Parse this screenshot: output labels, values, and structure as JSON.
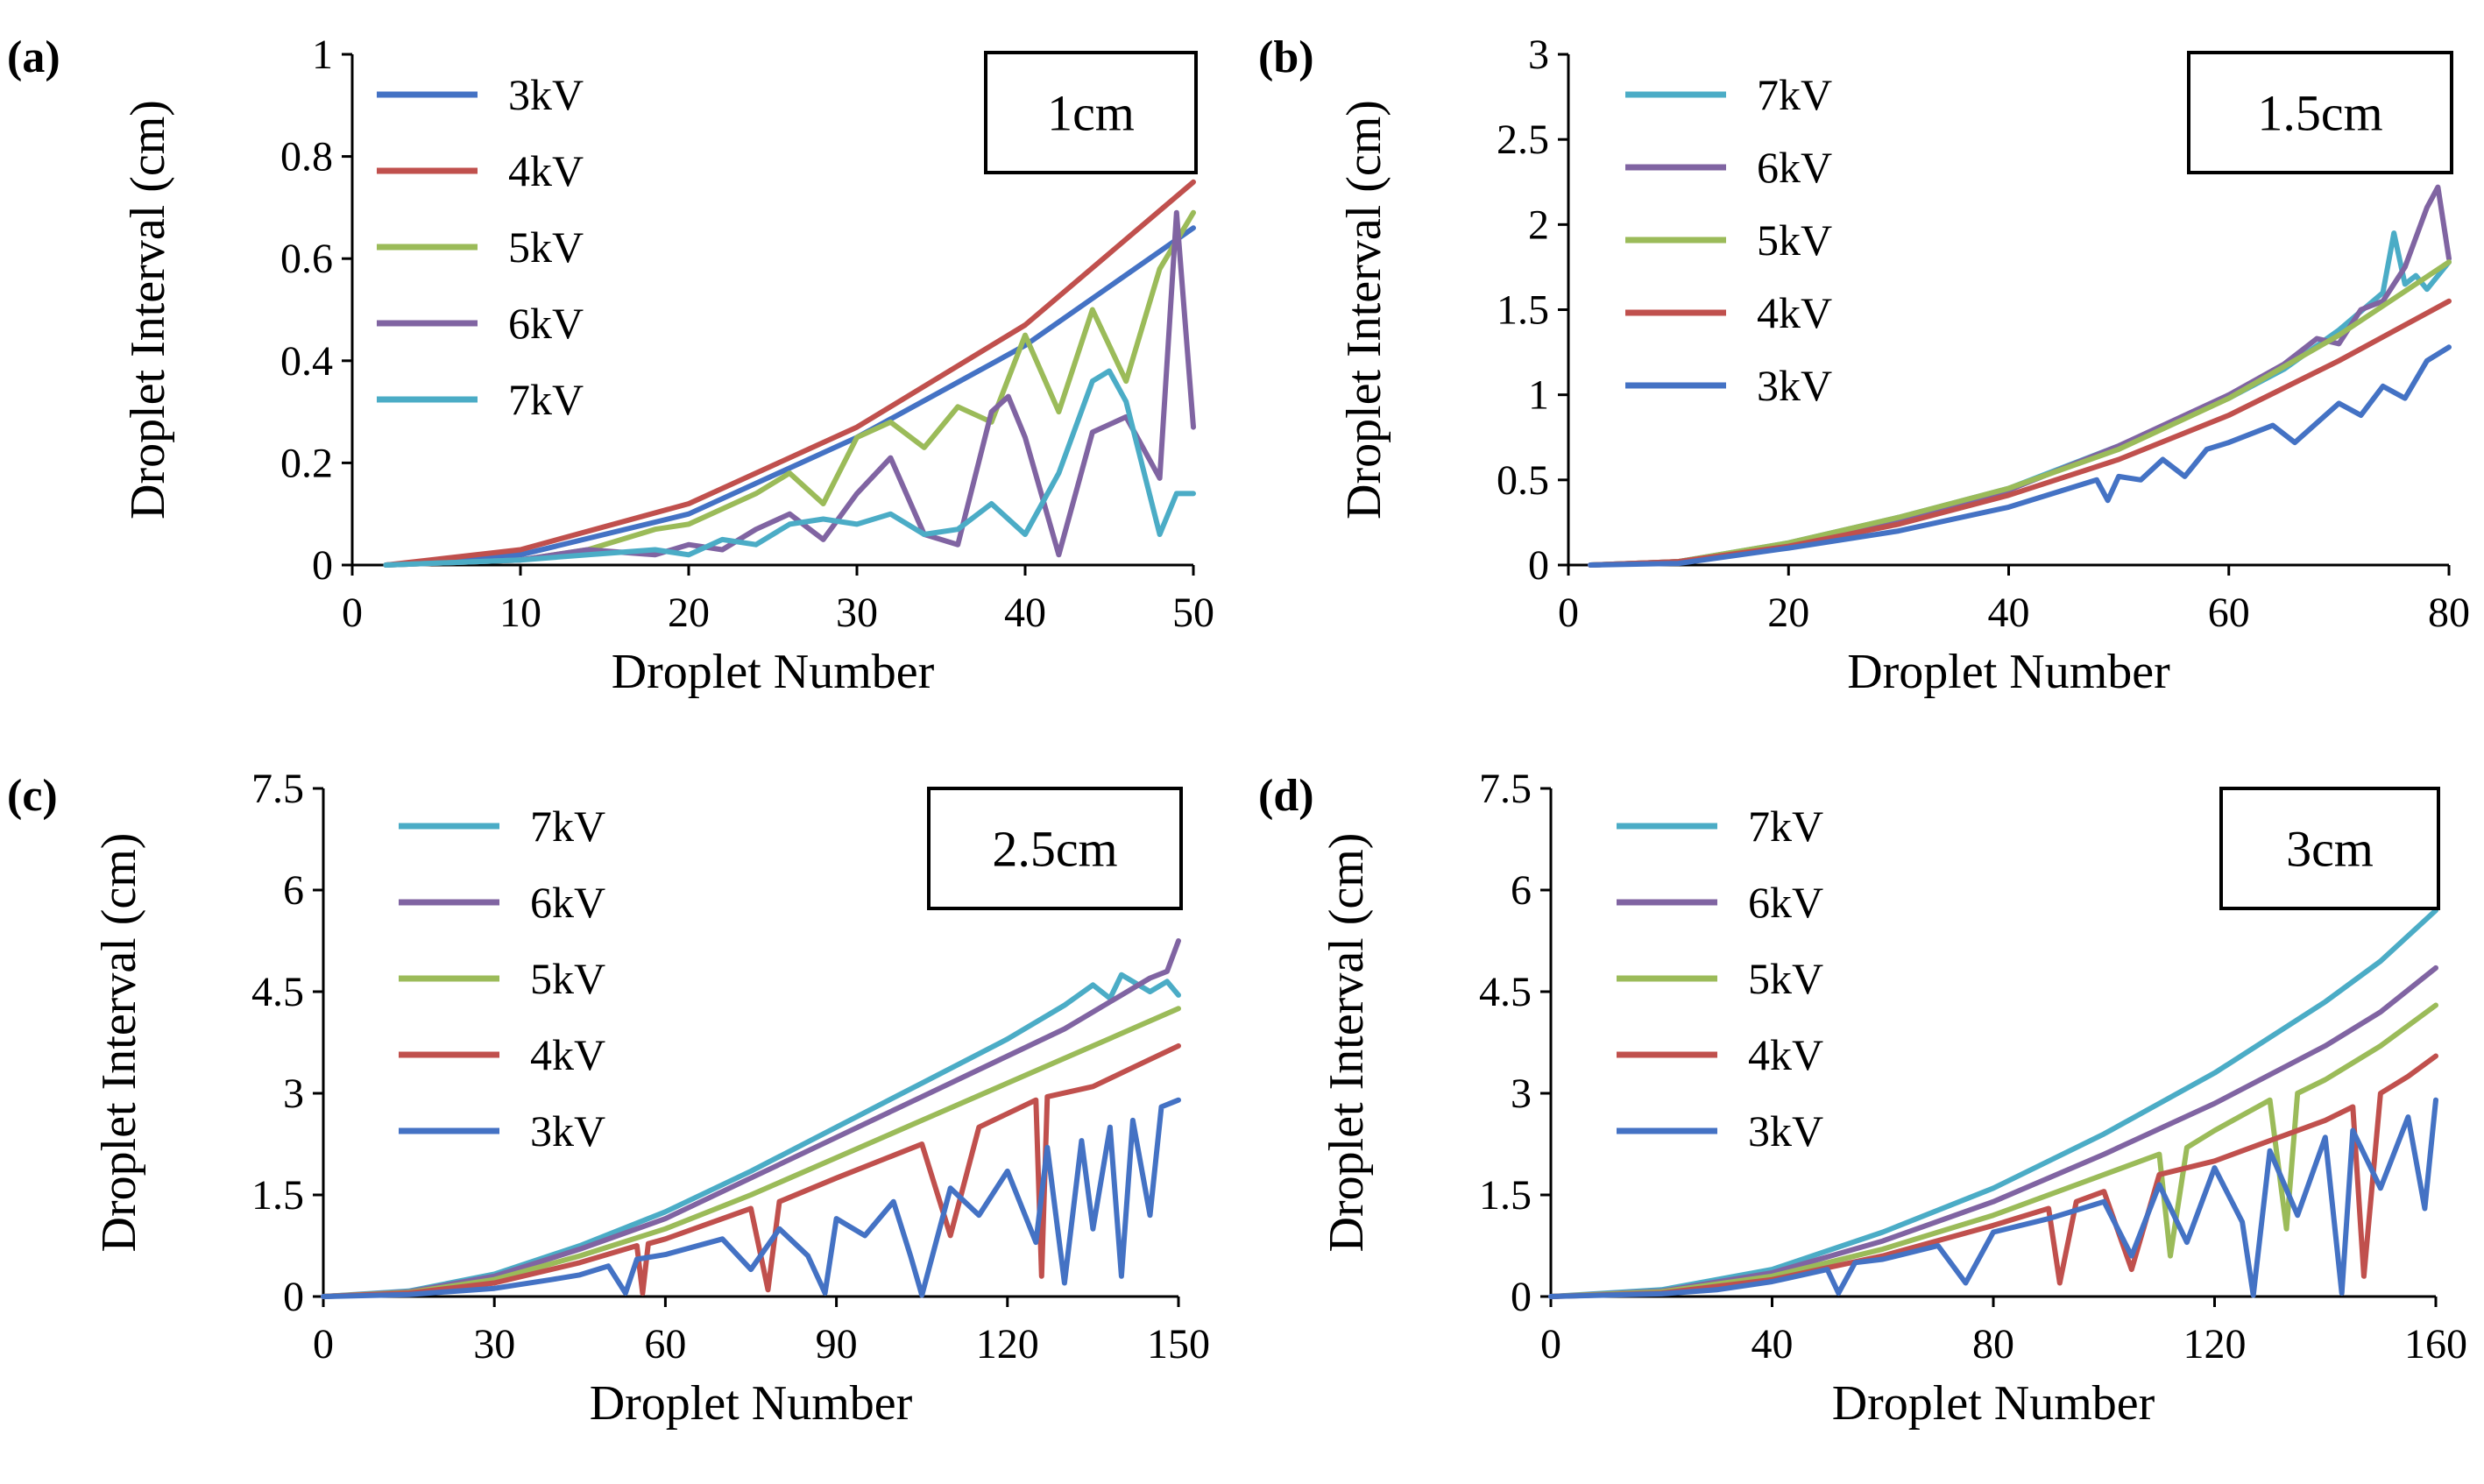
{
  "figure": {
    "panels": [
      {
        "tag": "(a)",
        "note": "1cm"
      },
      {
        "tag": "(b)",
        "note": "1.5cm"
      },
      {
        "tag": "(c)",
        "note": "2.5cm"
      },
      {
        "tag": "(d)",
        "note": "3cm"
      }
    ]
  },
  "chart_data": [
    {
      "type": "line",
      "title": "1cm",
      "xlabel": "Droplet Number",
      "ylabel": "Droplet Interval (cm)",
      "xlim": [
        0,
        50
      ],
      "ylim": [
        0,
        1
      ],
      "xticks": [
        "0",
        "10",
        "20",
        "30",
        "40",
        "50"
      ],
      "yticks": [
        "0",
        "0.2",
        "0.4",
        "0.6",
        "0.8",
        "1"
      ],
      "legend_position": "top-left",
      "series": [
        {
          "name": "3kV",
          "color": "#4472C4",
          "x": [
            2,
            10,
            20,
            30,
            40,
            50
          ],
          "y": [
            0.0,
            0.02,
            0.1,
            0.25,
            0.43,
            0.66
          ]
        },
        {
          "name": "4kV",
          "color": "#C0504D",
          "x": [
            2,
            10,
            20,
            30,
            40,
            50
          ],
          "y": [
            0.0,
            0.03,
            0.12,
            0.27,
            0.47,
            0.75
          ]
        },
        {
          "name": "5kV",
          "color": "#9BBB59",
          "x": [
            2,
            10,
            14,
            18,
            20,
            24,
            26,
            28,
            30,
            32,
            34,
            36,
            38,
            40,
            42,
            44,
            46,
            48,
            50
          ],
          "y": [
            0.0,
            0.01,
            0.03,
            0.07,
            0.08,
            0.14,
            0.18,
            0.12,
            0.25,
            0.28,
            0.23,
            0.31,
            0.28,
            0.45,
            0.3,
            0.5,
            0.36,
            0.58,
            0.69
          ]
        },
        {
          "name": "6kV",
          "color": "#8064A2",
          "x": [
            2,
            10,
            14,
            18,
            20,
            22,
            24,
            26,
            28,
            30,
            32,
            34,
            36,
            38,
            39,
            40,
            42,
            44,
            46,
            48,
            49,
            50
          ],
          "y": [
            0.0,
            0.01,
            0.03,
            0.02,
            0.04,
            0.03,
            0.07,
            0.1,
            0.05,
            0.14,
            0.21,
            0.06,
            0.04,
            0.3,
            0.33,
            0.25,
            0.02,
            0.26,
            0.29,
            0.17,
            0.69,
            0.27
          ]
        },
        {
          "name": "7kV",
          "color": "#4BACC6",
          "x": [
            2,
            10,
            14,
            18,
            20,
            22,
            24,
            26,
            28,
            30,
            32,
            34,
            36,
            38,
            40,
            42,
            44,
            45,
            46,
            48,
            49,
            50
          ],
          "y": [
            0.0,
            0.01,
            0.02,
            0.03,
            0.02,
            0.05,
            0.04,
            0.08,
            0.09,
            0.08,
            0.1,
            0.06,
            0.07,
            0.12,
            0.06,
            0.18,
            0.36,
            0.38,
            0.32,
            0.06,
            0.14,
            0.14
          ]
        }
      ]
    },
    {
      "type": "line",
      "title": "1.5cm",
      "xlabel": "Droplet Number",
      "ylabel": "Droplet Interval (cm)",
      "xlim": [
        0,
        80
      ],
      "ylim": [
        0,
        3
      ],
      "xticks": [
        "0",
        "20",
        "40",
        "60",
        "80"
      ],
      "yticks": [
        "0",
        "0.5",
        "1",
        "1.5",
        "2",
        "2.5",
        "3"
      ],
      "legend_position": "top-left",
      "series": [
        {
          "name": "7kV",
          "color": "#4BACC6",
          "x": [
            2,
            10,
            20,
            30,
            40,
            50,
            60,
            65,
            70,
            74,
            75,
            76,
            77,
            78,
            80
          ],
          "y": [
            0.0,
            0.02,
            0.13,
            0.28,
            0.45,
            0.7,
            0.98,
            1.15,
            1.38,
            1.6,
            1.95,
            1.65,
            1.7,
            1.62,
            1.78
          ]
        },
        {
          "name": "6kV",
          "color": "#8064A2",
          "x": [
            2,
            10,
            20,
            30,
            40,
            50,
            60,
            65,
            68,
            70,
            72,
            74,
            76,
            78,
            79,
            80
          ],
          "y": [
            0.0,
            0.02,
            0.12,
            0.27,
            0.44,
            0.7,
            1.0,
            1.18,
            1.33,
            1.3,
            1.5,
            1.55,
            1.75,
            2.1,
            2.22,
            1.8
          ]
        },
        {
          "name": "5kV",
          "color": "#9BBB59",
          "x": [
            2,
            10,
            20,
            30,
            40,
            50,
            60,
            70,
            80
          ],
          "y": [
            0.0,
            0.02,
            0.13,
            0.28,
            0.45,
            0.68,
            0.98,
            1.35,
            1.78
          ]
        },
        {
          "name": "4kV",
          "color": "#C0504D",
          "x": [
            2,
            10,
            20,
            30,
            40,
            50,
            60,
            70,
            80
          ],
          "y": [
            0.0,
            0.02,
            0.11,
            0.24,
            0.41,
            0.62,
            0.88,
            1.2,
            1.55
          ]
        },
        {
          "name": "3kV",
          "color": "#4472C4",
          "x": [
            2,
            10,
            20,
            30,
            40,
            48,
            49,
            50,
            52,
            54,
            56,
            58,
            60,
            64,
            66,
            70,
            72,
            74,
            76,
            78,
            80
          ],
          "y": [
            0.0,
            0.01,
            0.1,
            0.2,
            0.34,
            0.5,
            0.38,
            0.52,
            0.5,
            0.62,
            0.52,
            0.68,
            0.72,
            0.82,
            0.72,
            0.95,
            0.88,
            1.05,
            0.98,
            1.2,
            1.28
          ]
        }
      ]
    },
    {
      "type": "line",
      "title": "2.5cm",
      "xlabel": "Droplet Number",
      "ylabel": "Droplet Interval (cm)",
      "xlim": [
        0,
        150
      ],
      "ylim": [
        0,
        7.5
      ],
      "xticks": [
        "0",
        "30",
        "60",
        "90",
        "120",
        "150"
      ],
      "yticks": [
        "0",
        "1.5",
        "3",
        "4.5",
        "6",
        "7.5"
      ],
      "legend_position": "top-left",
      "series": [
        {
          "name": "7kV",
          "color": "#4BACC6",
          "x": [
            0,
            15,
            30,
            45,
            60,
            75,
            90,
            105,
            120,
            130,
            135,
            138,
            140,
            145,
            148,
            150
          ],
          "y": [
            0.0,
            0.08,
            0.33,
            0.75,
            1.25,
            1.85,
            2.5,
            3.15,
            3.8,
            4.3,
            4.6,
            4.4,
            4.75,
            4.5,
            4.65,
            4.45
          ]
        },
        {
          "name": "6kV",
          "color": "#8064A2",
          "x": [
            0,
            15,
            30,
            45,
            60,
            75,
            90,
            105,
            120,
            130,
            140,
            145,
            148,
            150
          ],
          "y": [
            0.0,
            0.07,
            0.3,
            0.7,
            1.15,
            1.75,
            2.35,
            2.95,
            3.55,
            3.95,
            4.45,
            4.7,
            4.8,
            5.25
          ]
        },
        {
          "name": "5kV",
          "color": "#9BBB59",
          "x": [
            0,
            15,
            30,
            45,
            60,
            75,
            90,
            105,
            120,
            135,
            150
          ],
          "y": [
            0.0,
            0.06,
            0.25,
            0.6,
            1.0,
            1.5,
            2.05,
            2.6,
            3.15,
            3.7,
            4.25
          ]
        },
        {
          "name": "4kV",
          "color": "#C0504D",
          "x": [
            0,
            15,
            30,
            45,
            55,
            56,
            57,
            60,
            75,
            78,
            80,
            90,
            105,
            110,
            115,
            120,
            125,
            126,
            127,
            135,
            140,
            145,
            150
          ],
          "y": [
            0.0,
            0.05,
            0.2,
            0.5,
            0.75,
            0.05,
            0.78,
            0.85,
            1.3,
            0.1,
            1.4,
            1.75,
            2.25,
            0.9,
            2.5,
            2.7,
            2.9,
            0.3,
            2.95,
            3.1,
            3.3,
            3.5,
            3.7
          ]
        },
        {
          "name": "3kV",
          "color": "#4472C4",
          "x": [
            0,
            15,
            30,
            40,
            45,
            50,
            53,
            55,
            60,
            70,
            75,
            80,
            85,
            88,
            90,
            95,
            100,
            103,
            105,
            110,
            115,
            120,
            125,
            127,
            130,
            133,
            135,
            138,
            140,
            142,
            145,
            147,
            150
          ],
          "y": [
            0.0,
            0.03,
            0.12,
            0.25,
            0.32,
            0.45,
            0.05,
            0.55,
            0.62,
            0.85,
            0.4,
            1.0,
            0.6,
            0.05,
            1.15,
            0.9,
            1.4,
            0.6,
            0.02,
            1.6,
            1.2,
            1.85,
            0.8,
            2.2,
            0.2,
            2.3,
            1.0,
            2.5,
            0.3,
            2.6,
            1.2,
            2.8,
            2.9
          ]
        }
      ]
    },
    {
      "type": "line",
      "title": "3cm",
      "xlabel": "Droplet Number",
      "ylabel": "Droplet Interval (cm)",
      "xlim": [
        0,
        160
      ],
      "ylim": [
        0,
        7.5
      ],
      "xticks": [
        "0",
        "40",
        "80",
        "120",
        "160"
      ],
      "yticks": [
        "0",
        "1.5",
        "3",
        "4.5",
        "6",
        "7.5"
      ],
      "legend_position": "top-left",
      "series": [
        {
          "name": "7kV",
          "color": "#4BACC6",
          "x": [
            0,
            20,
            40,
            60,
            80,
            100,
            120,
            140,
            150,
            160
          ],
          "y": [
            0.0,
            0.1,
            0.4,
            0.95,
            1.6,
            2.4,
            3.3,
            4.35,
            4.95,
            5.7
          ]
        },
        {
          "name": "6kV",
          "color": "#8064A2",
          "x": [
            0,
            20,
            40,
            60,
            80,
            100,
            120,
            140,
            150,
            160
          ],
          "y": [
            0.0,
            0.08,
            0.35,
            0.82,
            1.4,
            2.1,
            2.85,
            3.7,
            4.2,
            4.85
          ]
        },
        {
          "name": "5kV",
          "color": "#9BBB59",
          "x": [
            0,
            20,
            40,
            60,
            80,
            100,
            110,
            112,
            115,
            120,
            130,
            133,
            135,
            140,
            150,
            160
          ],
          "y": [
            0.0,
            0.07,
            0.3,
            0.7,
            1.2,
            1.8,
            2.1,
            0.6,
            2.2,
            2.45,
            2.9,
            1.0,
            3.0,
            3.2,
            3.7,
            4.3
          ]
        },
        {
          "name": "4kV",
          "color": "#C0504D",
          "x": [
            0,
            20,
            40,
            60,
            80,
            90,
            92,
            95,
            100,
            105,
            110,
            120,
            130,
            140,
            145,
            147,
            150,
            155,
            160
          ],
          "y": [
            0.0,
            0.05,
            0.25,
            0.6,
            1.05,
            1.3,
            0.2,
            1.4,
            1.55,
            0.4,
            1.8,
            2.0,
            2.3,
            2.6,
            2.8,
            0.3,
            3.0,
            3.25,
            3.55
          ]
        },
        {
          "name": "3kV",
          "color": "#4472C4",
          "x": [
            0,
            20,
            30,
            40,
            50,
            52,
            55,
            60,
            70,
            75,
            80,
            90,
            100,
            105,
            110,
            115,
            120,
            125,
            127,
            130,
            135,
            140,
            143,
            145,
            150,
            155,
            158,
            160
          ],
          "y": [
            0.0,
            0.04,
            0.1,
            0.22,
            0.4,
            0.05,
            0.5,
            0.55,
            0.75,
            0.2,
            0.95,
            1.15,
            1.4,
            0.6,
            1.65,
            0.8,
            1.9,
            1.1,
            0.02,
            2.15,
            1.2,
            2.35,
            0.05,
            2.45,
            1.6,
            2.65,
            1.3,
            2.9
          ]
        }
      ]
    }
  ]
}
